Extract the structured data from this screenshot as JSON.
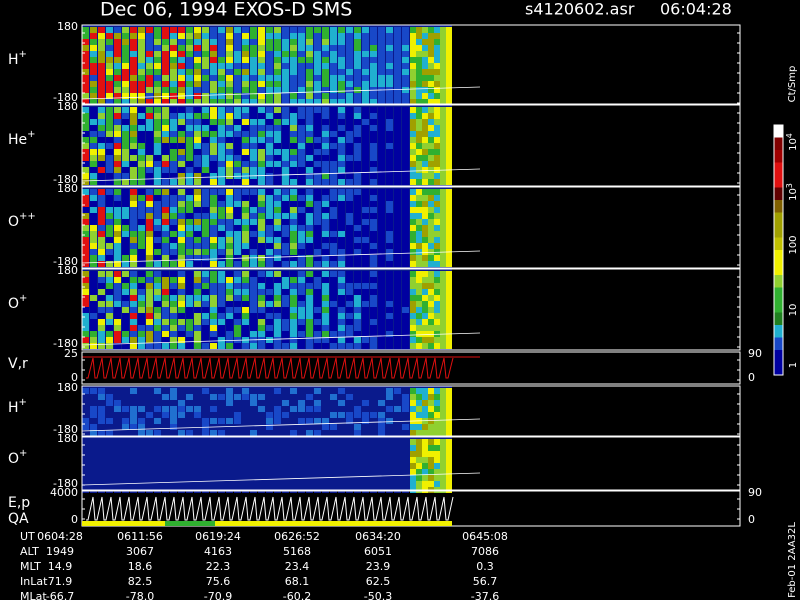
{
  "header": {
    "title": "Dec 06, 1994   EXOS-D SMS",
    "file": "s4120602.asr",
    "time": "06:04:28"
  },
  "panels": [
    {
      "label": {
        "name": "H",
        "charge": "+"
      },
      "left_ticks": [
        "180",
        "-180"
      ]
    },
    {
      "label": {
        "name": "He",
        "charge": "+"
      },
      "left_ticks": [
        "180",
        "-180"
      ]
    },
    {
      "label": {
        "name": "O",
        "charge": "++"
      },
      "left_ticks": [
        "180",
        "-180"
      ]
    },
    {
      "label": {
        "name": "O",
        "charge": "+"
      },
      "left_ticks": [
        "180",
        "-180"
      ]
    },
    {
      "label": {
        "name": "V,r"
      },
      "left_ticks": [
        "25",
        "0"
      ],
      "right_ticks": [
        "90",
        "0"
      ]
    },
    {
      "label": {
        "name": "H",
        "charge": "+"
      },
      "left_ticks": [
        "180",
        "-180"
      ]
    },
    {
      "label": {
        "name": "O",
        "charge": "+"
      },
      "left_ticks": [
        "180",
        "-180"
      ]
    },
    {
      "label": {
        "name": "E,p",
        "sub": "QA"
      },
      "left_ticks": [
        "4000",
        "0"
      ],
      "right_ticks": [
        "90",
        "0"
      ]
    }
  ],
  "colorbar": {
    "unit": "Ct/Smp",
    "labels": [
      {
        "base": "10",
        "exp": "4"
      },
      {
        "base": "10",
        "exp": "3"
      },
      {
        "base": "100"
      },
      {
        "base": "10"
      },
      {
        "base": "1"
      }
    ]
  },
  "footer": {
    "rows": [
      {
        "label": "UT",
        "values": [
          "0604:28",
          "0611:56",
          "0619:24",
          "0626:52",
          "0634:20",
          "0645:08"
        ]
      },
      {
        "label": "ALT",
        "values": [
          "1949",
          "3067",
          "4163",
          "5168",
          "6051",
          "7086"
        ]
      },
      {
        "label": "MLT",
        "values": [
          "14.9",
          "18.6",
          "22.3",
          "23.4",
          "23.9",
          "0.3"
        ]
      },
      {
        "label": "InLat",
        "values": [
          "71.9",
          "82.5",
          "75.6",
          "68.1",
          "62.5",
          "56.7"
        ]
      },
      {
        "label": "MLat",
        "values": [
          "-66.7",
          "-78.0",
          "-70.9",
          "-60.2",
          "-50.3",
          "-37.6"
        ]
      }
    ],
    "stamp": "Feb-01 2AA32L"
  }
}
